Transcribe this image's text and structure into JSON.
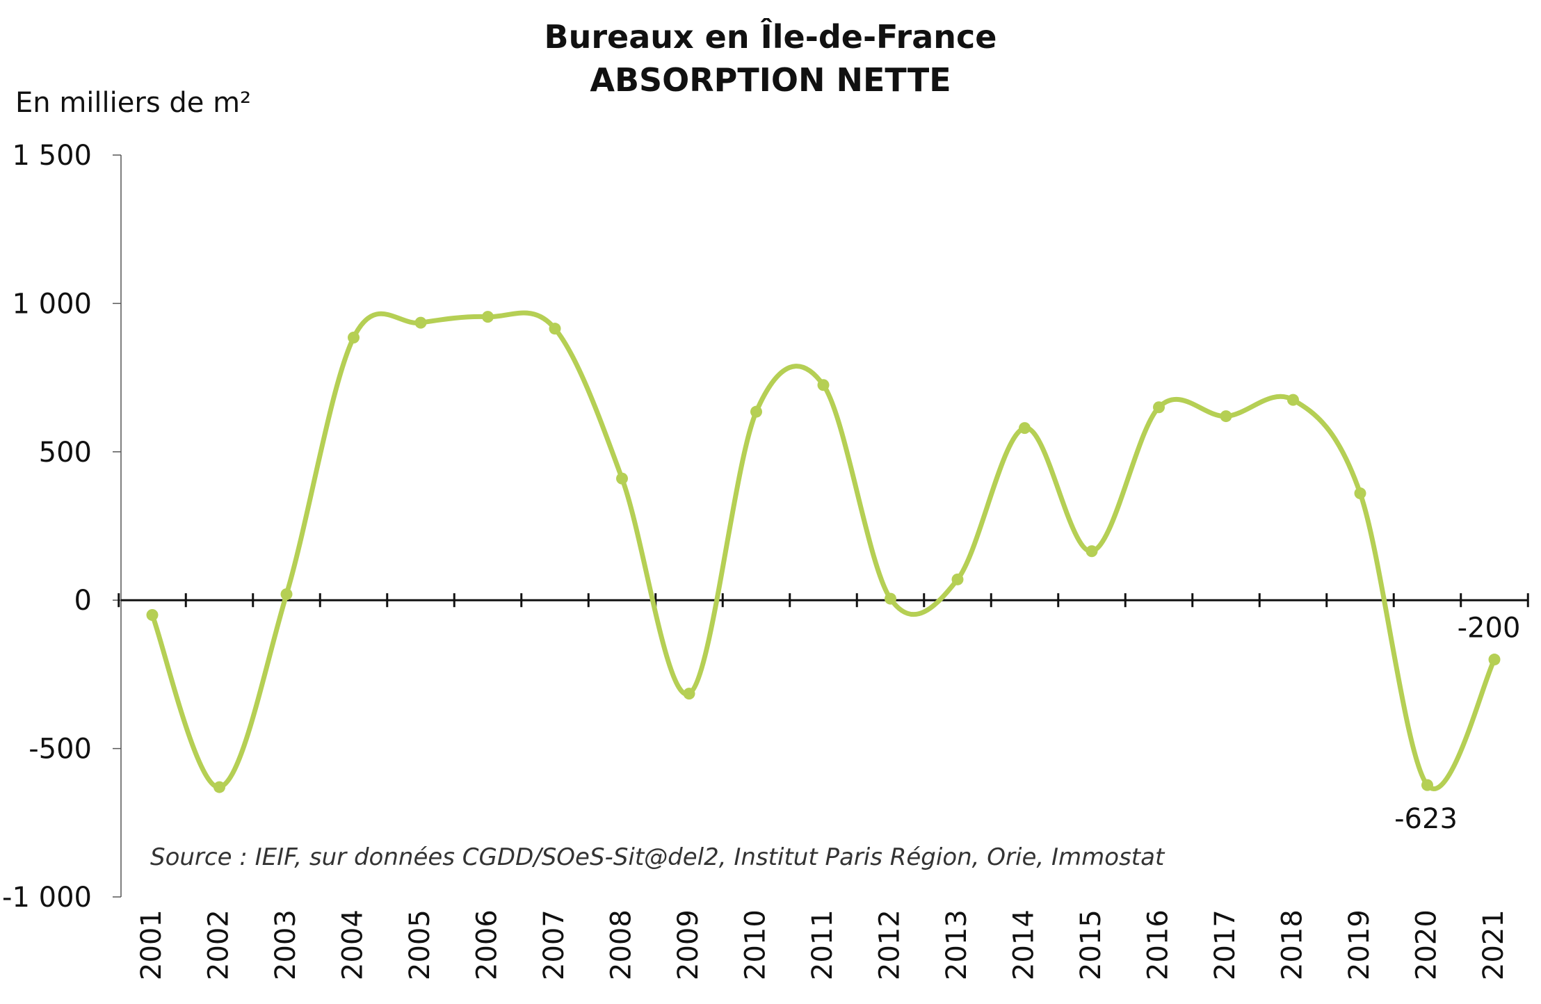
{
  "chart_data": {
    "type": "line",
    "title": "Bureaux en Île-de-France",
    "subtitle": "ABSORPTION NETTE",
    "ylabel": "En milliers de m²",
    "xlabel": "",
    "x": [
      "2001",
      "2002",
      "2003",
      "2004",
      "2005",
      "2006",
      "2007",
      "2008",
      "2009",
      "2010",
      "2011",
      "2012",
      "2013",
      "2014",
      "2015",
      "2016",
      "2017",
      "2018",
      "2019",
      "2020",
      "2021"
    ],
    "series": [
      {
        "values": [
          -50,
          -630,
          20,
          885,
          935,
          955,
          915,
          410,
          -315,
          635,
          725,
          5,
          70,
          580,
          165,
          650,
          620,
          675,
          360,
          -623,
          -200
        ],
        "color": "#b5cf54"
      }
    ],
    "ylim": [
      -1000,
      1500
    ],
    "yticks": [
      -1000,
      -500,
      0,
      500,
      1000,
      1500
    ],
    "ytick_labels": [
      "-1 000",
      "-500",
      "0",
      "500",
      "1 000",
      "1 500"
    ],
    "data_labels": [
      {
        "x": "2020",
        "text": "-623"
      },
      {
        "x": "2021",
        "text": "-200"
      }
    ],
    "annotation": "Source : IEIF, sur données CGDD/SOeS-Sit@del2, Institut Paris Région, Orie, Immostat",
    "grid": false,
    "legend": "none",
    "smooth": true
  }
}
